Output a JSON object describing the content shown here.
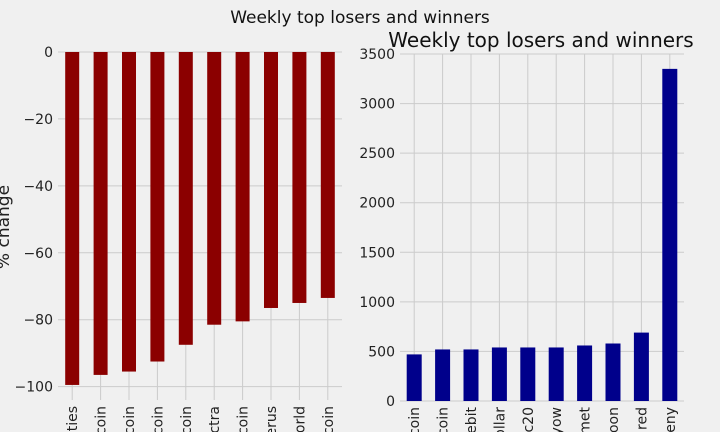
{
  "figure": {
    "suptitle": "Weekly top losers and winners",
    "background": "#f0f0f0"
  },
  "chart_data": [
    {
      "type": "bar",
      "title": "",
      "ylabel": "% change",
      "xlabel": "",
      "color": "#8b0000",
      "categories": [
        "ties",
        "coin",
        "coin",
        "coin",
        "coin",
        "ctra",
        "coin",
        "erus",
        "orld",
        "coin"
      ],
      "values": [
        -99.5,
        -96.5,
        -95.5,
        -92.5,
        -87.5,
        -81.5,
        -80.5,
        -76.5,
        -75,
        -73.5
      ],
      "ylim": [
        -104,
        0
      ],
      "yticks": [
        0,
        -20,
        -40,
        -60,
        -80,
        -100
      ],
      "ytick_labels": [
        "0",
        "−20",
        "−40",
        "−60",
        "−80",
        "−100"
      ],
      "grid": true
    },
    {
      "type": "bar",
      "title": "Weekly top losers and winners",
      "ylabel": "",
      "xlabel": "",
      "color": "#00008b",
      "categories": [
        "coin",
        "coin",
        "ebit",
        "ollar",
        "c20",
        "yow",
        "met",
        "oon",
        "red",
        "eny"
      ],
      "values": [
        470,
        520,
        520,
        540,
        540,
        540,
        560,
        580,
        690,
        3350
      ],
      "ylim": [
        0,
        3500
      ],
      "yticks": [
        0,
        500,
        1000,
        1500,
        2000,
        2500,
        3000,
        3500
      ],
      "ytick_labels": [
        "0",
        "500",
        "1000",
        "1500",
        "2000",
        "2500",
        "3000",
        "3500"
      ],
      "grid": true
    }
  ]
}
